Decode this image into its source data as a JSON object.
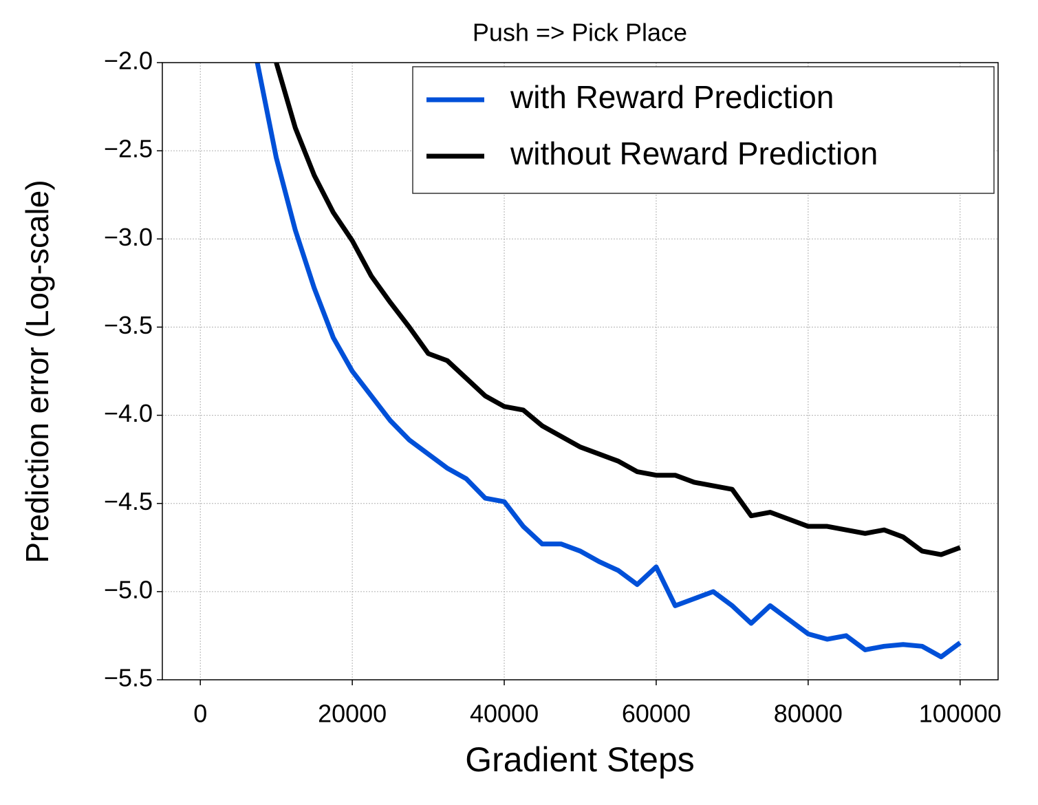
{
  "chart_data": {
    "type": "line",
    "title": "Push => Pick Place",
    "x_label": "Gradient Steps",
    "y_label": "Prediction error (Log-scale)",
    "x": [
      7500,
      10000,
      12500,
      15000,
      17500,
      20000,
      22500,
      25000,
      27500,
      30000,
      32500,
      35000,
      37500,
      40000,
      42500,
      45000,
      47500,
      50000,
      52500,
      55000,
      57500,
      60000,
      62500,
      65000,
      67500,
      70000,
      72500,
      75000,
      77500,
      80000,
      82500,
      85000,
      87500,
      90000,
      92500,
      95000,
      97500,
      100000
    ],
    "series": [
      {
        "name": "with Reward Prediction",
        "color": "#0050d8",
        "values": [
          -2.0,
          -2.54,
          -2.95,
          -3.28,
          -3.56,
          -3.75,
          -3.89,
          -4.03,
          -4.14,
          -4.22,
          -4.3,
          -4.36,
          -4.47,
          -4.49,
          -4.63,
          -4.73,
          -4.73,
          -4.77,
          -4.83,
          -4.88,
          -4.96,
          -4.86,
          -5.08,
          -5.04,
          -5.0,
          -5.08,
          -5.18,
          -5.08,
          -5.16,
          -5.24,
          -5.27,
          -5.25,
          -5.33,
          -5.31,
          -5.3,
          -5.31,
          -5.37,
          -5.29
        ]
      },
      {
        "name": "without Reward Prediction",
        "color": "#000000",
        "values": [
          null,
          -2.0,
          -2.37,
          -2.64,
          -2.85,
          -3.01,
          -3.21,
          -3.36,
          -3.5,
          -3.65,
          -3.69,
          -3.79,
          -3.89,
          -3.95,
          -3.97,
          -4.06,
          -4.12,
          -4.18,
          -4.22,
          -4.26,
          -4.32,
          -4.34,
          -4.34,
          -4.38,
          -4.4,
          -4.42,
          -4.57,
          -4.55,
          -4.59,
          -4.63,
          -4.63,
          -4.65,
          -4.67,
          -4.65,
          -4.69,
          -4.77,
          -4.79,
          -4.75
        ]
      }
    ],
    "xlim": [
      -5000,
      105000
    ],
    "xticks": [
      0,
      20000,
      40000,
      60000,
      80000,
      100000
    ],
    "ylim": [
      -5.5,
      -2.0
    ],
    "yticks": [
      {
        "value": -2.0,
        "label": "−2.0"
      },
      {
        "value": -2.5,
        "label": "−2.5"
      },
      {
        "value": -3.0,
        "label": "−3.0"
      },
      {
        "value": -3.5,
        "label": "−3.5"
      },
      {
        "value": -4.0,
        "label": "−4.0"
      },
      {
        "value": -4.5,
        "label": "−4.5"
      },
      {
        "value": -5.0,
        "label": "−5.0"
      },
      {
        "value": -5.5,
        "label": "−5.5"
      }
    ],
    "grid": true,
    "legend_position": "upper-right"
  }
}
